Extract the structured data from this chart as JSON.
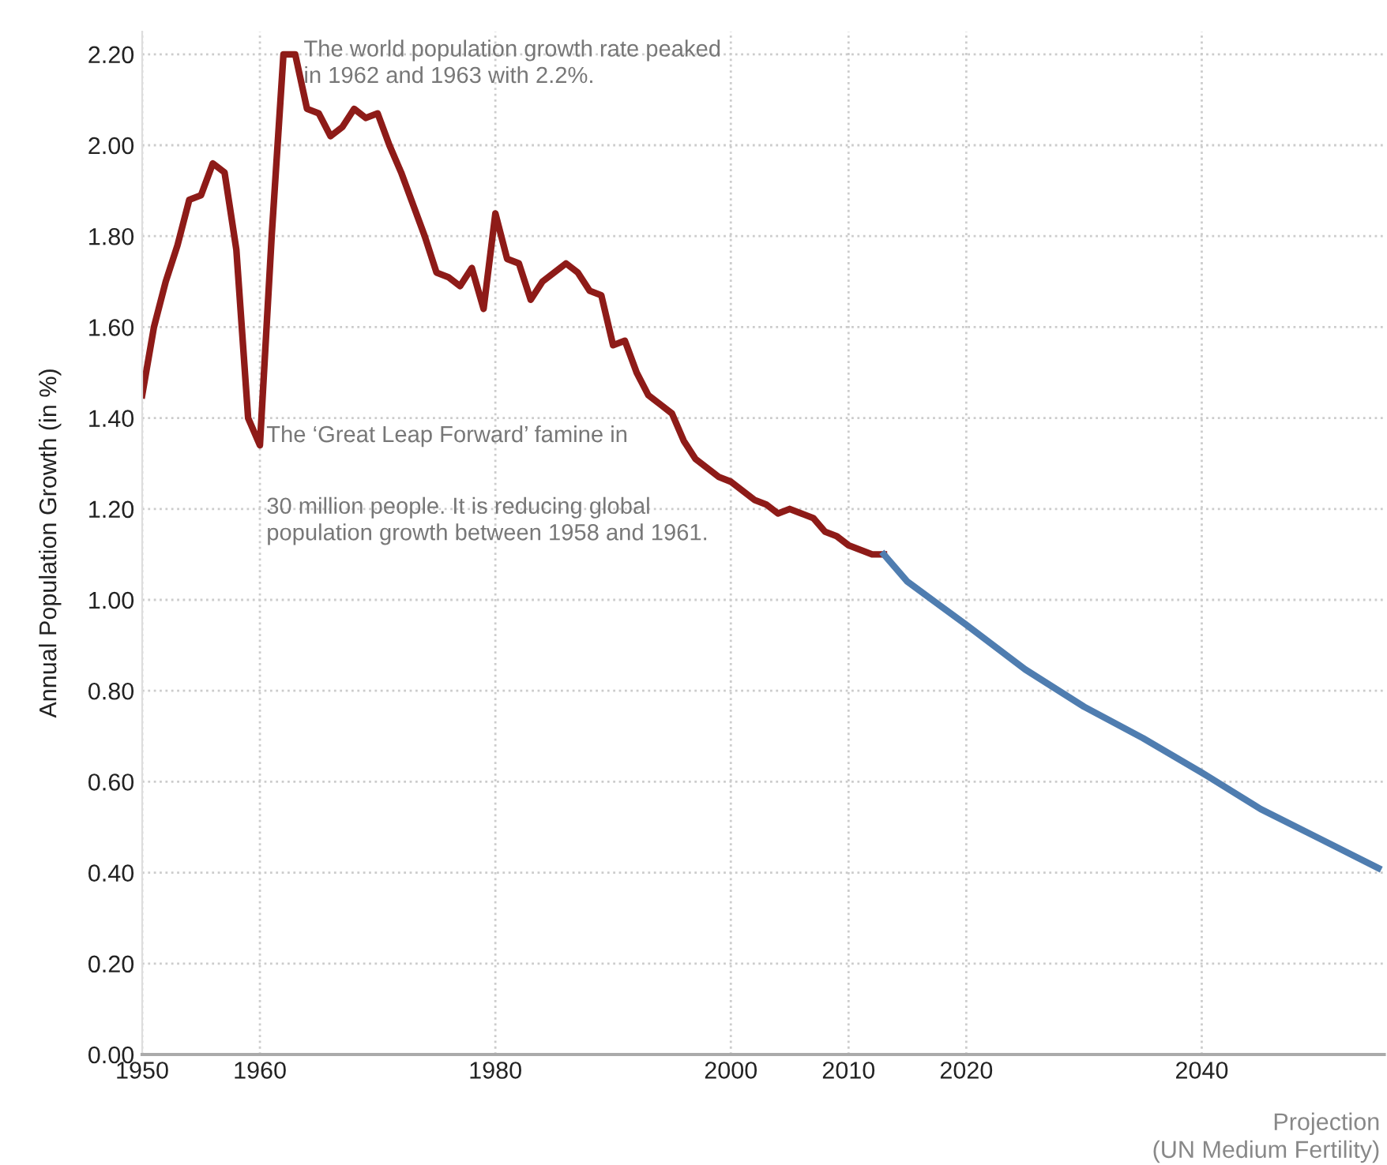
{
  "chart_data": {
    "type": "line",
    "ylabel": "Annual Population Growth (in %)",
    "xlim": [
      1950,
      2055.5
    ],
    "xticks": [
      1950,
      1960,
      1980,
      2000,
      2010,
      2020,
      2040
    ],
    "ylim": [
      0,
      2.25
    ],
    "yticks": [
      {
        "value": 0,
        "label": "0.00"
      },
      {
        "value": 0.2,
        "label": "0.20"
      },
      {
        "value": 0.4,
        "label": "0.40"
      },
      {
        "value": 0.6,
        "label": "0.60"
      },
      {
        "value": 0.8,
        "label": "0.80"
      },
      {
        "value": 1.0,
        "label": "1.00"
      },
      {
        "value": 1.2,
        "label": "1.20"
      },
      {
        "value": 1.4,
        "label": "1.40"
      },
      {
        "value": 1.6,
        "label": "1.60"
      },
      {
        "value": 1.8,
        "label": "1.80"
      },
      {
        "value": 2.0,
        "label": "2.00"
      },
      {
        "value": 2.2,
        "label": "2.20"
      }
    ],
    "grid": true,
    "line_style": "solid",
    "series": [
      {
        "color": "#8e1b18",
        "x": [
          1950,
          1951,
          1952,
          1953,
          1954,
          1955,
          1956,
          1957,
          1958,
          1959,
          1960,
          1961,
          1962,
          1963,
          1964,
          1965,
          1966,
          1967,
          1968,
          1969,
          1970,
          1971,
          1972,
          1973,
          1974,
          1975,
          1976,
          1977,
          1978,
          1979,
          1980,
          1981,
          1982,
          1983,
          1984,
          1985,
          1986,
          1987,
          1988,
          1989,
          1990,
          1991,
          1992,
          1993,
          1994,
          1995,
          1996,
          1997,
          1998,
          1999,
          2000,
          2001,
          2002,
          2003,
          2004,
          2005,
          2006,
          2007,
          2008,
          2009,
          2010,
          2011,
          2012,
          2013
        ],
        "values": [
          1.45,
          1.6,
          1.7,
          1.78,
          1.88,
          1.89,
          1.96,
          1.94,
          1.77,
          1.4,
          1.34,
          1.8,
          2.2,
          2.2,
          2.08,
          2.07,
          2.02,
          2.04,
          2.08,
          2.06,
          2.07,
          2.0,
          1.94,
          1.87,
          1.8,
          1.72,
          1.71,
          1.69,
          1.73,
          1.64,
          1.85,
          1.75,
          1.74,
          1.66,
          1.7,
          1.72,
          1.74,
          1.72,
          1.68,
          1.67,
          1.56,
          1.57,
          1.5,
          1.45,
          1.43,
          1.41,
          1.35,
          1.31,
          1.29,
          1.27,
          1.26,
          1.24,
          1.22,
          1.21,
          1.19,
          1.2,
          1.19,
          1.18,
          1.15,
          1.14,
          1.12,
          1.11,
          1.1,
          1.1
        ]
      },
      {
        "color": "#4f7db0",
        "x": [
          2013,
          2015,
          2020,
          2025,
          2030,
          2035,
          2040,
          2045,
          2050,
          2055
        ],
        "values": [
          1.1,
          1.04,
          0.945,
          0.847,
          0.765,
          0.696,
          0.62,
          0.54,
          0.475,
          0.41
        ]
      }
    ],
    "annotations": [
      "The world population growth rate peaked\nin 1962 and 1963 with 2.2%.",
      "The ‘Great Leap Forward’ famine in",
      "30 million people. It is reducing global\npopulation growth between 1958 and 1961.",
      "Projection\n(UN Medium Fertility)"
    ]
  }
}
